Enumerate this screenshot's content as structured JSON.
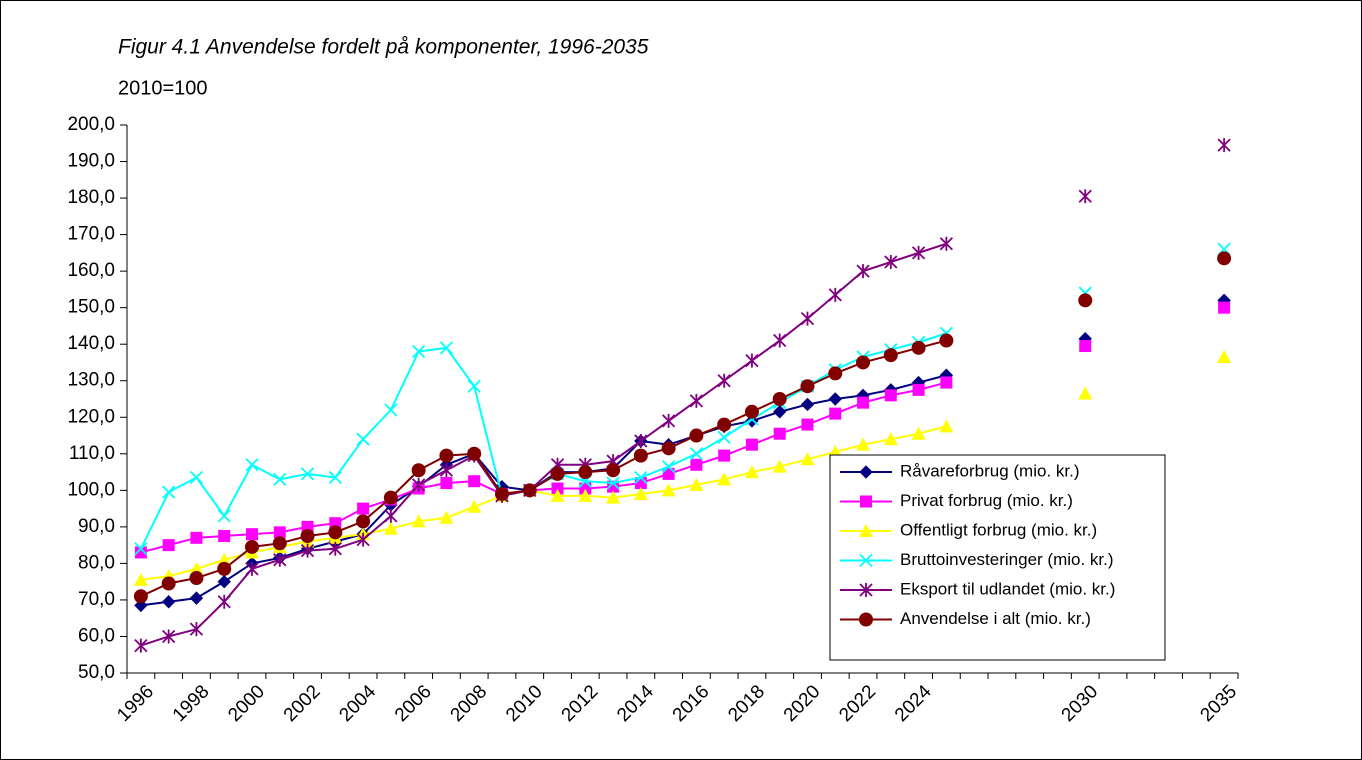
{
  "chart_data": {
    "type": "line",
    "title": "Figur 4.1 Anvendelse fordelt på komponenter, 1996-2035",
    "subtitle": "2010=100",
    "categories": [
      "1996",
      null,
      "1998",
      null,
      "2000",
      null,
      "2002",
      null,
      "2004",
      null,
      "2006",
      null,
      "2008",
      null,
      "2010",
      null,
      "2012",
      null,
      "2014",
      null,
      "2016",
      null,
      "2018",
      null,
      "2020",
      null,
      "2022",
      null,
      "2024",
      null,
      null,
      null,
      null,
      null,
      "2030",
      null,
      null,
      null,
      null,
      "2035"
    ],
    "ylim": [
      50,
      200
    ],
    "yticks": [
      {
        "value": 50,
        "label": "50,0"
      },
      {
        "value": 60,
        "label": "60,0"
      },
      {
        "value": 70,
        "label": "70,0"
      },
      {
        "value": 80,
        "label": "80,0"
      },
      {
        "value": 90,
        "label": "90,0"
      },
      {
        "value": 100,
        "label": "100,0"
      },
      {
        "value": 110,
        "label": "110,0"
      },
      {
        "value": 120,
        "label": "120,0"
      },
      {
        "value": 130,
        "label": "130,0"
      },
      {
        "value": 140,
        "label": "140,0"
      },
      {
        "value": 150,
        "label": "150,0"
      },
      {
        "value": 160,
        "label": "160,0"
      },
      {
        "value": 170,
        "label": "170,0"
      },
      {
        "value": 180,
        "label": "180,0"
      },
      {
        "value": 190,
        "label": "190,0"
      },
      {
        "value": 200,
        "label": "200,0"
      }
    ],
    "grid": false,
    "legend_position": "lower right",
    "series": [
      {
        "name": "Råvareforbrug (mio. kr.)",
        "color": "#000080",
        "marker": "diamond",
        "values": [
          68.5,
          69.5,
          70.5,
          75,
          80,
          81.5,
          84,
          86,
          88,
          96,
          101,
          107,
          110,
          101,
          100,
          105,
          105,
          106,
          113.5,
          112.5,
          115,
          117.5,
          119,
          121.5,
          123.5,
          125,
          126,
          127.5,
          129.5,
          131.5,
          null,
          null,
          null,
          null,
          141.5,
          null,
          null,
          null,
          null,
          152
        ]
      },
      {
        "name": "Privat forbrug (mio. kr.)",
        "color": "#FF00FF",
        "marker": "square",
        "values": [
          83,
          85,
          87,
          87.5,
          88,
          88.5,
          90,
          91,
          95,
          97.5,
          100.5,
          102,
          102.5,
          99,
          100,
          100.5,
          100.5,
          101,
          102,
          104.5,
          107,
          109.5,
          112.5,
          115.5,
          118,
          121,
          124,
          126,
          127.5,
          129.5,
          null,
          null,
          null,
          null,
          139.5,
          null,
          null,
          null,
          null,
          150
        ]
      },
      {
        "name": "Offentligt forbrug (mio. kr.)",
        "color": "#FFFF00",
        "marker": "triangle",
        "values": [
          75.5,
          76.5,
          78.5,
          81,
          83,
          84.5,
          86,
          87,
          88,
          89.5,
          91.5,
          92.5,
          95.5,
          98.5,
          100,
          98.5,
          98.5,
          98,
          99,
          100,
          101.5,
          103,
          105,
          106.5,
          108.5,
          110.5,
          112.5,
          114,
          115.5,
          117.5,
          null,
          null,
          null,
          null,
          126.5,
          null,
          null,
          null,
          null,
          136.5
        ]
      },
      {
        "name": "Bruttoinvesteringer (mio. kr.)",
        "color": "#00FFFF",
        "marker": "x",
        "values": [
          84,
          99.5,
          103.5,
          93,
          107,
          103,
          104.5,
          103.5,
          114,
          122,
          138,
          139,
          128.5,
          98.5,
          100,
          104.5,
          102.5,
          102,
          103.5,
          106.5,
          110,
          114.5,
          119.5,
          124,
          128.5,
          133,
          136.5,
          138.5,
          140.5,
          143,
          null,
          null,
          null,
          null,
          154,
          null,
          null,
          null,
          null,
          166
        ]
      },
      {
        "name": "Eksport til udlandet (mio. kr.)",
        "color": "#800080",
        "marker": "star",
        "values": [
          57.5,
          60,
          62,
          69.5,
          78.5,
          81,
          83.5,
          84,
          86.5,
          93,
          101.5,
          105.5,
          109.5,
          98.5,
          100,
          107,
          107,
          108,
          113.5,
          119,
          124.5,
          130,
          135.5,
          141,
          147,
          153.5,
          160,
          162.5,
          165,
          167.5,
          null,
          null,
          null,
          null,
          180.5,
          null,
          null,
          null,
          null,
          194.5
        ]
      },
      {
        "name": "Anvendelse i alt (mio. kr.)",
        "color": "#800000",
        "marker": "circle",
        "values": [
          71,
          74.5,
          76,
          78.5,
          84.5,
          85.5,
          87.5,
          88.5,
          91.5,
          98,
          105.5,
          109.5,
          110,
          99,
          100,
          104.5,
          105,
          105.5,
          109.5,
          111.5,
          115,
          118,
          121.5,
          125,
          128.5,
          132,
          135,
          137,
          139,
          141,
          null,
          null,
          null,
          null,
          152,
          null,
          null,
          null,
          null,
          163.5
        ]
      }
    ]
  }
}
